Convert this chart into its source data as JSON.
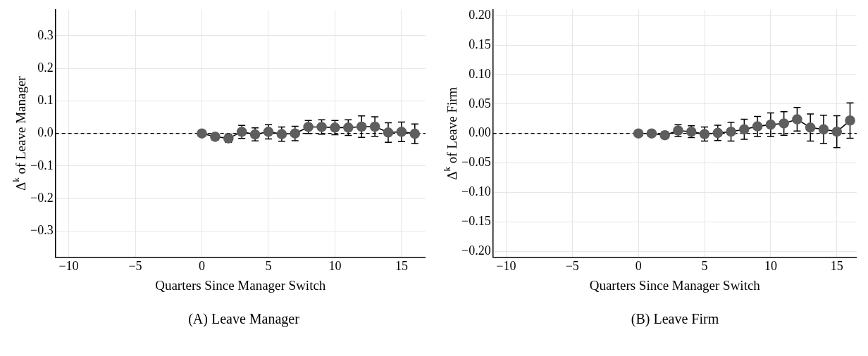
{
  "chart_data": [
    {
      "type": "line",
      "x": [
        0,
        1,
        2,
        3,
        4,
        5,
        6,
        7,
        8,
        9,
        10,
        11,
        12,
        13,
        14,
        15,
        16
      ],
      "values": [
        0,
        -0.01,
        -0.015,
        0.005,
        -0.003,
        0.005,
        -0.002,
        0,
        0.02,
        0.02,
        0.018,
        0.018,
        0.021,
        0.021,
        0.003,
        0.005,
        -0.001
      ],
      "errors": [
        null,
        0.01,
        0.012,
        0.02,
        0.02,
        0.022,
        0.022,
        0.022,
        0.02,
        0.022,
        0.022,
        0.024,
        0.033,
        0.03,
        0.03,
        0.03,
        0.03
      ],
      "color": "#5e5e5e",
      "marker": "circle",
      "grid": true,
      "xlim": [
        -11,
        16.8
      ],
      "xticks": [
        -10,
        -5,
        0,
        5,
        10,
        15
      ],
      "ylim": [
        -0.38,
        0.38
      ],
      "yticks": [
        {
          "value": -0.3,
          "label": "−0.3"
        },
        {
          "value": -0.2,
          "label": "−0.2"
        },
        {
          "value": -0.1,
          "label": "−0.1"
        },
        {
          "value": 0,
          "label": "0.0"
        },
        0.1,
        0.2,
        0.3
      ],
      "xlabel": "Quarters Since Manager Switch",
      "ylabel": "Δ$^{k}$ of Leave Manager",
      "ref_lines": [
        {
          "axis": "y",
          "value": 0,
          "line_style": "dashed",
          "color": "#000000"
        }
      ],
      "annotations": [
        "(A) Leave Manager"
      ]
    },
    {
      "type": "line",
      "x": [
        0,
        1,
        2,
        3,
        4,
        5,
        6,
        7,
        8,
        9,
        10,
        11,
        12,
        13,
        14,
        15,
        16
      ],
      "values": [
        0,
        0,
        -0.003,
        0.005,
        0.003,
        -0.001,
        0.001,
        0.003,
        0.007,
        0.012,
        0.015,
        0.017,
        0.024,
        0.01,
        0.007,
        0.003,
        0.022
      ],
      "errors": [
        null,
        0.003,
        0.006,
        0.01,
        0.01,
        0.012,
        0.013,
        0.016,
        0.017,
        0.017,
        0.02,
        0.02,
        0.02,
        0.023,
        0.024,
        0.027,
        0.03
      ],
      "color": "#5e5e5e",
      "marker": "circle",
      "grid": true,
      "xlim": [
        -11,
        16.5
      ],
      "xticks": [
        -10,
        -5,
        0,
        5,
        10,
        15
      ],
      "ylim": [
        -0.21,
        0.21
      ],
      "yticks": [
        {
          "value": -0.2,
          "label": "−0.20"
        },
        {
          "value": -0.15,
          "label": "−0.15"
        },
        {
          "value": -0.1,
          "label": "−0.10"
        },
        {
          "value": -0.05,
          "label": "−0.05"
        },
        {
          "value": 0,
          "label": "0.00"
        },
        {
          "value": 0.05,
          "label": "0.05"
        },
        {
          "value": 0.1,
          "label": "0.10"
        },
        {
          "value": 0.15,
          "label": "0.15"
        },
        {
          "value": 0.2,
          "label": "0.20"
        }
      ],
      "xlabel": "Quarters Since Manager Switch",
      "ylabel": "Δ$^{k}$ of Leave Firm",
      "ref_lines": [
        {
          "axis": "y",
          "value": 0,
          "line_style": "dashed",
          "color": "#000000"
        }
      ],
      "annotations": [
        "(B) Leave Firm"
      ]
    }
  ]
}
